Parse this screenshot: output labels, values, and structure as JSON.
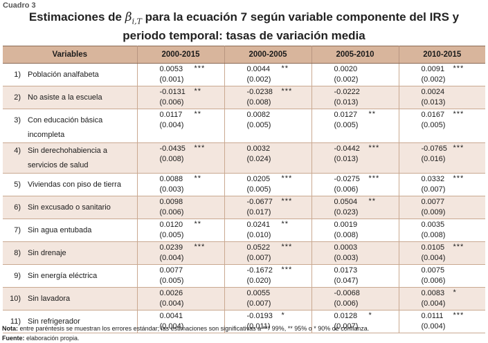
{
  "cuadro": "Cuadro 3",
  "title": {
    "pre": "Estimaciones de ",
    "symbol": "β",
    "symbol_sub": "i,T",
    "post": " para la ecuación 7 según variable componente del IRS y",
    "line2": "periodo temporal: tasas de variación media"
  },
  "headers": [
    "Variables",
    "2000-2015",
    "2000-2005",
    "2005-2010",
    "2010-2015"
  ],
  "rows": [
    {
      "num": "1)",
      "label": "Población analfabeta",
      "cells": [
        [
          "0.0053",
          "(0.001)",
          "***"
        ],
        [
          "0.0044",
          "(0.002)",
          "**"
        ],
        [
          "0.0020",
          "(0.002)",
          ""
        ],
        [
          "0.0091",
          "(0.002)",
          "***"
        ]
      ]
    },
    {
      "num": "2)",
      "label": "No asiste a la escuela",
      "cells": [
        [
          "-0.0131",
          "(0.006)",
          "**"
        ],
        [
          "-0.0238",
          "(0.008)",
          "***"
        ],
        [
          "-0.0222",
          "(0.013)",
          ""
        ],
        [
          "0.0024",
          "(0.013)",
          ""
        ]
      ]
    },
    {
      "num": "3)",
      "label": "Con educación básica incompleta",
      "cells": [
        [
          "0.0117",
          "(0.004)",
          "**"
        ],
        [
          "0.0082",
          "(0.005)",
          ""
        ],
        [
          "0.0127",
          "(0.005)",
          "**"
        ],
        [
          "0.0167",
          "(0.005)",
          "***"
        ]
      ]
    },
    {
      "num": "4)",
      "label": "Sin derechohabiencia a servicios de salud",
      "cells": [
        [
          "-0.0435",
          "(0.008)",
          "***"
        ],
        [
          "0.0032",
          "(0.024)",
          ""
        ],
        [
          "-0.0442",
          "(0.013)",
          "***"
        ],
        [
          "-0.0765",
          "(0.016)",
          "***"
        ]
      ]
    },
    {
      "num": "5)",
      "label": "Viviendas con piso de tierra",
      "cells": [
        [
          "0.0088",
          "(0.003)",
          "**"
        ],
        [
          "0.0205",
          "(0.005)",
          "***"
        ],
        [
          "-0.0275",
          "(0.006)",
          "***"
        ],
        [
          "0.0332",
          "(0.007)",
          "***"
        ]
      ]
    },
    {
      "num": "6)",
      "label": "Sin excusado o sanitario",
      "cells": [
        [
          "0.0098",
          "(0.006)",
          ""
        ],
        [
          "-0.0677",
          "(0.017)",
          "***"
        ],
        [
          "0.0504",
          "(0.023)",
          "**"
        ],
        [
          "0.0077",
          "(0.009)",
          ""
        ]
      ]
    },
    {
      "num": "7)",
      "label": "Sin agua entubada",
      "cells": [
        [
          "0.0120",
          "(0.005)",
          "**"
        ],
        [
          "0.0241",
          "(0.010)",
          "**"
        ],
        [
          "0.0019",
          "(0.008)",
          ""
        ],
        [
          "0.0035",
          "(0.008)",
          ""
        ]
      ]
    },
    {
      "num": "8)",
      "label": "Sin drenaje",
      "cells": [
        [
          "0.0239",
          "(0.004)",
          "***"
        ],
        [
          "0.0522",
          "(0.007)",
          "***"
        ],
        [
          "0.0003",
          "(0.003)",
          ""
        ],
        [
          "0.0105",
          "(0.004)",
          "***"
        ]
      ]
    },
    {
      "num": "9)",
      "label": "Sin energía eléctrica",
      "cells": [
        [
          "0.0077",
          "(0.005)",
          ""
        ],
        [
          "-0.1672",
          "(0.020)",
          "***"
        ],
        [
          "0.0173",
          "(0.047)",
          ""
        ],
        [
          "0.0075",
          "(0.006)",
          ""
        ]
      ]
    },
    {
      "num": "10)",
      "label": "Sin lavadora",
      "cells": [
        [
          "0.0026",
          "(0.004)",
          ""
        ],
        [
          "0.0055",
          "(0.007)",
          ""
        ],
        [
          "-0.0068",
          "(0.006)",
          ""
        ],
        [
          "0.0083",
          "(0.004)",
          "*"
        ]
      ]
    },
    {
      "num": "11)",
      "label": "Sin refrigerador",
      "cells": [
        [
          "0.0041",
          "(0.004)",
          ""
        ],
        [
          "-0.0193",
          "(0.011)",
          "*"
        ],
        [
          "0.0128",
          "(0.007)",
          "*"
        ],
        [
          "0.0111",
          "(0.004)",
          "***"
        ]
      ]
    }
  ],
  "note": {
    "label": "Nota:",
    "text": " entre paréntesis se muestran los errores estándar; las estimaciones son significativas a *** 99%, ** 95% o * 90% de confianza."
  },
  "fuente": {
    "label": "Fuente:",
    "text": " elaboración propia."
  }
}
